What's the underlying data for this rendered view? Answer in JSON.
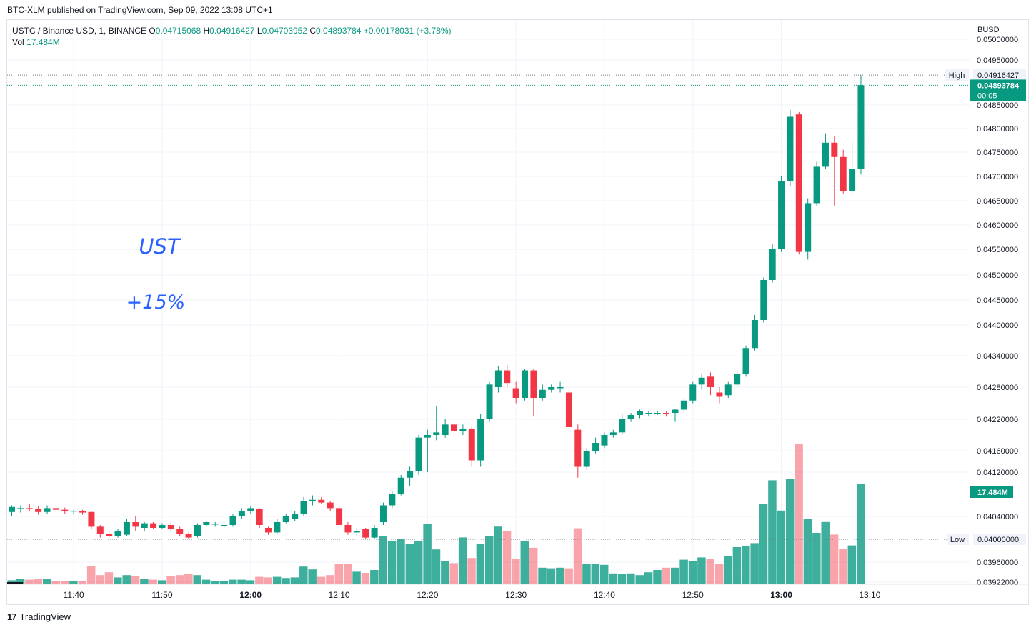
{
  "header": {
    "caption": "BTC-XLM published on TradingView.com, Sep 09, 2022 13:08 UTC+1"
  },
  "legend": {
    "symbol": "USTC / Binance USD, 1, BINANCE",
    "o_label": "O",
    "o": "0.04715068",
    "h_label": "H",
    "h": "0.04916427",
    "l_label": "L",
    "l": "0.04703952",
    "c_label": "C",
    "c": "0.04893784",
    "change": "+0.00178031 (+3.78%)",
    "vol_label": "Vol",
    "vol": "17.484M"
  },
  "annotations": {
    "line1": "UST",
    "line2": "+15%"
  },
  "footer": {
    "brand": "TradingView",
    "logo": "17"
  },
  "chart_data": {
    "type": "candlestick",
    "currency": "BUSD",
    "y_ticks": [
      "0.05000000",
      "0.04950000",
      "0.04850000",
      "0.04800000",
      "0.04750000",
      "0.04700000",
      "0.04650000",
      "0.04600000",
      "0.04550000",
      "0.04500000",
      "0.04450000",
      "0.04400000",
      "0.04340000",
      "0.04280000",
      "0.04220000",
      "0.04160000",
      "0.04120000",
      "0.04040000",
      "0.03960000",
      "0.03922000"
    ],
    "x_ticks": [
      "11:40",
      "11:50",
      "12:00",
      "12:10",
      "12:20",
      "12:30",
      "12:40",
      "12:50",
      "13:00",
      "13:10"
    ],
    "x_ticks_bold": [
      "12:00",
      "13:00"
    ],
    "high_label": "High",
    "high_value": "0.04916427",
    "low_label": "Low",
    "low_value": "0.04000000",
    "last_price": "0.04893784",
    "countdown": "00:05",
    "volume_label": "17.484M",
    "start_time": "11:33",
    "candles": [
      {
        "o": 0.04048,
        "h": 0.0406,
        "l": 0.0404,
        "c": 0.04057,
        "v": 0.7
      },
      {
        "o": 0.04053,
        "h": 0.0406,
        "l": 0.04047,
        "c": 0.04055,
        "v": 0.9
      },
      {
        "o": 0.04055,
        "h": 0.04062,
        "l": 0.0405,
        "c": 0.04054,
        "v": 0.8
      },
      {
        "o": 0.04054,
        "h": 0.04058,
        "l": 0.04043,
        "c": 0.04048,
        "v": 1.0
      },
      {
        "o": 0.04048,
        "h": 0.0406,
        "l": 0.04045,
        "c": 0.04055,
        "v": 1.0
      },
      {
        "o": 0.04055,
        "h": 0.04058,
        "l": 0.04049,
        "c": 0.04052,
        "v": 0.6
      },
      {
        "o": 0.04052,
        "h": 0.04056,
        "l": 0.04045,
        "c": 0.04049,
        "v": 0.6
      },
      {
        "o": 0.04049,
        "h": 0.04052,
        "l": 0.04043,
        "c": 0.0405,
        "v": 0.5
      },
      {
        "o": 0.0405,
        "h": 0.04052,
        "l": 0.04043,
        "c": 0.04047,
        "v": 0.6
      },
      {
        "o": 0.04048,
        "h": 0.0405,
        "l": 0.04018,
        "c": 0.04022,
        "v": 3.2
      },
      {
        "o": 0.04022,
        "h": 0.04025,
        "l": 0.04003,
        "c": 0.0401,
        "v": 1.6
      },
      {
        "o": 0.0401,
        "h": 0.04012,
        "l": 0.04003,
        "c": 0.04006,
        "v": 2.1
      },
      {
        "o": 0.04006,
        "h": 0.04018,
        "l": 0.04003,
        "c": 0.04015,
        "v": 1.2
      },
      {
        "o": 0.04008,
        "h": 0.04035,
        "l": 0.04005,
        "c": 0.0403,
        "v": 1.6
      },
      {
        "o": 0.0403,
        "h": 0.0404,
        "l": 0.04015,
        "c": 0.04022,
        "v": 1.4
      },
      {
        "o": 0.0402,
        "h": 0.0403,
        "l": 0.04015,
        "c": 0.04028,
        "v": 0.9
      },
      {
        "o": 0.04028,
        "h": 0.0403,
        "l": 0.04018,
        "c": 0.0402,
        "v": 0.8
      },
      {
        "o": 0.0402,
        "h": 0.04028,
        "l": 0.04018,
        "c": 0.04025,
        "v": 0.7
      },
      {
        "o": 0.04025,
        "h": 0.0403,
        "l": 0.04015,
        "c": 0.04018,
        "v": 1.4
      },
      {
        "o": 0.04018,
        "h": 0.04022,
        "l": 0.04005,
        "c": 0.0401,
        "v": 1.6
      },
      {
        "o": 0.0401,
        "h": 0.04012,
        "l": 0.04,
        "c": 0.04003,
        "v": 1.8
      },
      {
        "o": 0.04005,
        "h": 0.04028,
        "l": 0.04003,
        "c": 0.04025,
        "v": 1.6
      },
      {
        "o": 0.04025,
        "h": 0.04032,
        "l": 0.04022,
        "c": 0.0403,
        "v": 0.8
      },
      {
        "o": 0.04027,
        "h": 0.0403,
        "l": 0.04022,
        "c": 0.04027,
        "v": 0.6
      },
      {
        "o": 0.04024,
        "h": 0.0403,
        "l": 0.0402,
        "c": 0.04025,
        "v": 0.6
      },
      {
        "o": 0.04025,
        "h": 0.04045,
        "l": 0.04022,
        "c": 0.0404,
        "v": 0.8
      },
      {
        "o": 0.0404,
        "h": 0.04055,
        "l": 0.04035,
        "c": 0.0405,
        "v": 0.8
      },
      {
        "o": 0.0405,
        "h": 0.04058,
        "l": 0.04045,
        "c": 0.04055,
        "v": 0.7
      },
      {
        "o": 0.04053,
        "h": 0.04055,
        "l": 0.0402,
        "c": 0.04025,
        "v": 1.3
      },
      {
        "o": 0.0402,
        "h": 0.04022,
        "l": 0.04008,
        "c": 0.04012,
        "v": 1.2
      },
      {
        "o": 0.04012,
        "h": 0.04035,
        "l": 0.0401,
        "c": 0.0403,
        "v": 1.3
      },
      {
        "o": 0.0403,
        "h": 0.04045,
        "l": 0.04028,
        "c": 0.0404,
        "v": 1.1
      },
      {
        "o": 0.04035,
        "h": 0.0405,
        "l": 0.04032,
        "c": 0.04045,
        "v": 1.2
      },
      {
        "o": 0.04045,
        "h": 0.04075,
        "l": 0.0404,
        "c": 0.04068,
        "v": 3.1
      },
      {
        "o": 0.04068,
        "h": 0.04078,
        "l": 0.0406,
        "c": 0.0407,
        "v": 2.6
      },
      {
        "o": 0.0407,
        "h": 0.04075,
        "l": 0.04062,
        "c": 0.04065,
        "v": 1.3
      },
      {
        "o": 0.04065,
        "h": 0.04068,
        "l": 0.0405,
        "c": 0.04055,
        "v": 1.6
      },
      {
        "o": 0.04055,
        "h": 0.0406,
        "l": 0.0402,
        "c": 0.04025,
        "v": 3.6
      },
      {
        "o": 0.04025,
        "h": 0.0403,
        "l": 0.04008,
        "c": 0.04012,
        "v": 3.5
      },
      {
        "o": 0.04012,
        "h": 0.0402,
        "l": 0.04005,
        "c": 0.04015,
        "v": 2.2
      },
      {
        "o": 0.04018,
        "h": 0.0402,
        "l": 0.04,
        "c": 0.04003,
        "v": 2.0
      },
      {
        "o": 0.04003,
        "h": 0.04025,
        "l": 0.04,
        "c": 0.0402,
        "v": 2.5
      },
      {
        "o": 0.0403,
        "h": 0.04065,
        "l": 0.04025,
        "c": 0.0406,
        "v": 8.5
      },
      {
        "o": 0.0406,
        "h": 0.04085,
        "l": 0.04055,
        "c": 0.0408,
        "v": 7.6
      },
      {
        "o": 0.0408,
        "h": 0.04115,
        "l": 0.04078,
        "c": 0.0411,
        "v": 7.9
      },
      {
        "o": 0.0411,
        "h": 0.0413,
        "l": 0.04095,
        "c": 0.04122,
        "v": 7.0
      },
      {
        "o": 0.04122,
        "h": 0.0419,
        "l": 0.04115,
        "c": 0.04185,
        "v": 7.5
      },
      {
        "o": 0.04185,
        "h": 0.042,
        "l": 0.0412,
        "c": 0.0419,
        "v": 10.6
      },
      {
        "o": 0.0419,
        "h": 0.04245,
        "l": 0.0418,
        "c": 0.04195,
        "v": 6.1
      },
      {
        "o": 0.0419,
        "h": 0.0422,
        "l": 0.04185,
        "c": 0.0421,
        "v": 4.0
      },
      {
        "o": 0.0421,
        "h": 0.04215,
        "l": 0.04195,
        "c": 0.04198,
        "v": 3.7
      },
      {
        "o": 0.04198,
        "h": 0.0421,
        "l": 0.0419,
        "c": 0.04202,
        "v": 8.2
      },
      {
        "o": 0.04202,
        "h": 0.04205,
        "l": 0.0413,
        "c": 0.04142,
        "v": 4.6
      },
      {
        "o": 0.04142,
        "h": 0.0423,
        "l": 0.0413,
        "c": 0.0422,
        "v": 7.1
      },
      {
        "o": 0.0422,
        "h": 0.0429,
        "l": 0.04215,
        "c": 0.04285,
        "v": 8.5
      },
      {
        "o": 0.0428,
        "h": 0.0432,
        "l": 0.0427,
        "c": 0.04312,
        "v": 10.1
      },
      {
        "o": 0.04312,
        "h": 0.04322,
        "l": 0.0428,
        "c": 0.04288,
        "v": 9.3
      },
      {
        "o": 0.04278,
        "h": 0.0429,
        "l": 0.0425,
        "c": 0.0426,
        "v": 4.4
      },
      {
        "o": 0.0426,
        "h": 0.04315,
        "l": 0.04255,
        "c": 0.04312,
        "v": 7.5
      },
      {
        "o": 0.04312,
        "h": 0.04315,
        "l": 0.04225,
        "c": 0.0426,
        "v": 6.4
      },
      {
        "o": 0.0426,
        "h": 0.04285,
        "l": 0.04255,
        "c": 0.04275,
        "v": 2.9
      },
      {
        "o": 0.04275,
        "h": 0.04285,
        "l": 0.0427,
        "c": 0.0428,
        "v": 2.8
      },
      {
        "o": 0.04278,
        "h": 0.0429,
        "l": 0.0427,
        "c": 0.0428,
        "v": 2.9
      },
      {
        "o": 0.0427,
        "h": 0.04275,
        "l": 0.042,
        "c": 0.04205,
        "v": 2.8
      },
      {
        "o": 0.042,
        "h": 0.0421,
        "l": 0.0411,
        "c": 0.0413,
        "v": 9.8
      },
      {
        "o": 0.0413,
        "h": 0.04165,
        "l": 0.04125,
        "c": 0.0416,
        "v": 3.6
      },
      {
        "o": 0.0416,
        "h": 0.04185,
        "l": 0.04155,
        "c": 0.04175,
        "v": 3.6
      },
      {
        "o": 0.0417,
        "h": 0.04195,
        "l": 0.04165,
        "c": 0.0419,
        "v": 3.4
      },
      {
        "o": 0.0419,
        "h": 0.042,
        "l": 0.04185,
        "c": 0.04195,
        "v": 1.9
      },
      {
        "o": 0.04195,
        "h": 0.0423,
        "l": 0.0419,
        "c": 0.0422,
        "v": 1.8
      },
      {
        "o": 0.0422,
        "h": 0.04232,
        "l": 0.04215,
        "c": 0.04228,
        "v": 1.9
      },
      {
        "o": 0.04228,
        "h": 0.04238,
        "l": 0.04222,
        "c": 0.04235,
        "v": 1.6
      },
      {
        "o": 0.0423,
        "h": 0.04235,
        "l": 0.04225,
        "c": 0.04232,
        "v": 2.1
      },
      {
        "o": 0.0423,
        "h": 0.04235,
        "l": 0.04228,
        "c": 0.04232,
        "v": 2.5
      },
      {
        "o": 0.04232,
        "h": 0.04235,
        "l": 0.04225,
        "c": 0.0423,
        "v": 2.9
      },
      {
        "o": 0.04232,
        "h": 0.0424,
        "l": 0.04215,
        "c": 0.04238,
        "v": 2.9
      },
      {
        "o": 0.04238,
        "h": 0.0426,
        "l": 0.04232,
        "c": 0.04255,
        "v": 4.3
      },
      {
        "o": 0.04255,
        "h": 0.0429,
        "l": 0.0425,
        "c": 0.04285,
        "v": 4.0
      },
      {
        "o": 0.04285,
        "h": 0.04305,
        "l": 0.04275,
        "c": 0.04298,
        "v": 4.7
      },
      {
        "o": 0.043,
        "h": 0.04308,
        "l": 0.04265,
        "c": 0.0428,
        "v": 4.5
      },
      {
        "o": 0.0427,
        "h": 0.0428,
        "l": 0.0425,
        "c": 0.04262,
        "v": 3.5
      },
      {
        "o": 0.04265,
        "h": 0.0429,
        "l": 0.0426,
        "c": 0.04285,
        "v": 4.9
      },
      {
        "o": 0.04285,
        "h": 0.0431,
        "l": 0.0428,
        "c": 0.04305,
        "v": 6.5
      },
      {
        "o": 0.04305,
        "h": 0.0436,
        "l": 0.043,
        "c": 0.04355,
        "v": 6.7
      },
      {
        "o": 0.04355,
        "h": 0.0442,
        "l": 0.0435,
        "c": 0.0441,
        "v": 7.2
      },
      {
        "o": 0.0441,
        "h": 0.04495,
        "l": 0.04405,
        "c": 0.0449,
        "v": 14.0
      },
      {
        "o": 0.0449,
        "h": 0.0456,
        "l": 0.04485,
        "c": 0.0455,
        "v": 18.2
      },
      {
        "o": 0.0455,
        "h": 0.047,
        "l": 0.04545,
        "c": 0.0469,
        "v": 12.9
      },
      {
        "o": 0.0469,
        "h": 0.0484,
        "l": 0.0468,
        "c": 0.04825,
        "v": 18.5
      },
      {
        "o": 0.0483,
        "h": 0.04835,
        "l": 0.0454,
        "c": 0.04545,
        "v": 24.5
      },
      {
        "o": 0.04545,
        "h": 0.04655,
        "l": 0.0453,
        "c": 0.04645,
        "v": 11.5
      },
      {
        "o": 0.04645,
        "h": 0.0473,
        "l": 0.0464,
        "c": 0.0472,
        "v": 9.0
      },
      {
        "o": 0.0472,
        "h": 0.0479,
        "l": 0.04715,
        "c": 0.0477,
        "v": 10.9
      },
      {
        "o": 0.0477,
        "h": 0.04785,
        "l": 0.0464,
        "c": 0.0474,
        "v": 8.7
      },
      {
        "o": 0.0474,
        "h": 0.04755,
        "l": 0.04665,
        "c": 0.0467,
        "v": 6.2
      },
      {
        "o": 0.0467,
        "h": 0.04775,
        "l": 0.04665,
        "c": 0.04715,
        "v": 6.8
      },
      {
        "o": 0.04715,
        "h": 0.04916,
        "l": 0.04704,
        "c": 0.04894,
        "v": 17.5
      }
    ]
  }
}
